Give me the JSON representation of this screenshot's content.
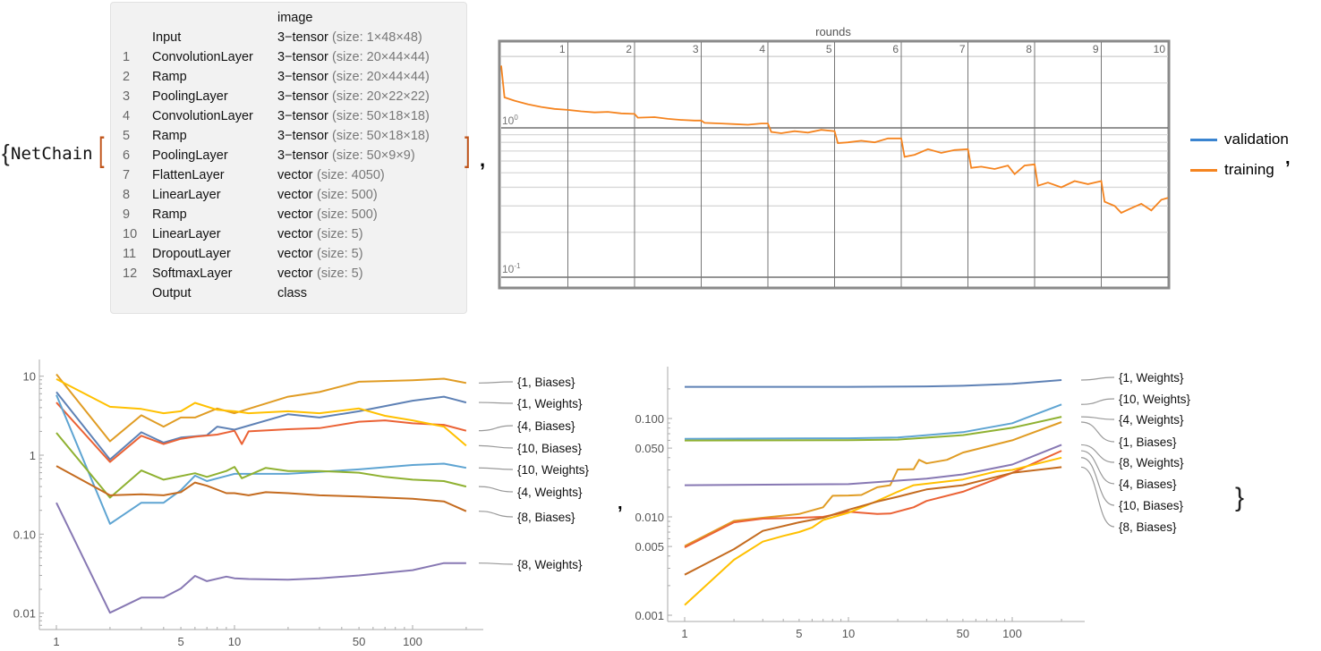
{
  "expression": {
    "open_brace": "{",
    "head": "NetChain",
    "open_bracket": "[",
    "close_bracket": "]",
    "comma": ",",
    "close_brace": "}"
  },
  "netchain": {
    "input_header": "image",
    "rows": [
      {
        "num": "",
        "name": "Input",
        "type": "3−tensor",
        "size": "(size: 1×48×48)"
      },
      {
        "num": "1",
        "name": "ConvolutionLayer",
        "type": "3−tensor",
        "size": "(size: 20×44×44)"
      },
      {
        "num": "2",
        "name": "Ramp",
        "type": "3−tensor",
        "size": "(size: 20×44×44)"
      },
      {
        "num": "3",
        "name": "PoolingLayer",
        "type": "3−tensor",
        "size": "(size: 20×22×22)"
      },
      {
        "num": "4",
        "name": "ConvolutionLayer",
        "type": "3−tensor",
        "size": "(size: 50×18×18)"
      },
      {
        "num": "5",
        "name": "Ramp",
        "type": "3−tensor",
        "size": "(size: 50×18×18)"
      },
      {
        "num": "6",
        "name": "PoolingLayer",
        "type": "3−tensor",
        "size": "(size: 50×9×9)"
      },
      {
        "num": "7",
        "name": "FlattenLayer",
        "type": "vector",
        "size": "(size: 4050)"
      },
      {
        "num": "8",
        "name": "LinearLayer",
        "type": "vector",
        "size": "(size: 500)"
      },
      {
        "num": "9",
        "name": "Ramp",
        "type": "vector",
        "size": "(size: 500)"
      },
      {
        "num": "10",
        "name": "LinearLayer",
        "type": "vector",
        "size": "(size: 5)"
      },
      {
        "num": "11",
        "name": "DropoutLayer",
        "type": "vector",
        "size": "(size: 5)"
      },
      {
        "num": "12",
        "name": "SoftmaxLayer",
        "type": "vector",
        "size": "(size: 5)"
      },
      {
        "num": "",
        "name": "Output",
        "type": "class",
        "size": ""
      }
    ]
  },
  "chart_data": [
    {
      "type": "line",
      "title": "rounds",
      "xlim": [
        0,
        10
      ],
      "x_ticks": [
        "1",
        "2",
        "3",
        "4",
        "5",
        "6",
        "7",
        "8",
        "9",
        "10"
      ],
      "y_scale": "log",
      "ylim": [
        0.085,
        3.1
      ],
      "y_tick_labels": [
        {
          "base": "10",
          "exp": "0"
        },
        {
          "base": "10",
          "exp": "-1"
        }
      ],
      "grid": true,
      "legend": "right",
      "series": [
        {
          "name": "validation",
          "color": "#3a84d0",
          "x": [],
          "y": []
        },
        {
          "name": "training",
          "color": "#f5841f",
          "x": [
            0,
            0.05,
            0.2,
            0.4,
            0.6,
            0.8,
            1,
            1.2,
            1.4,
            1.6,
            1.8,
            2,
            2.05,
            2.3,
            2.5,
            2.7,
            2.9,
            3,
            3.05,
            3.3,
            3.5,
            3.7,
            3.9,
            4,
            4.05,
            4.2,
            4.4,
            4.6,
            4.8,
            5,
            5.05,
            5.2,
            5.4,
            5.6,
            5.8,
            6,
            6.05,
            6.2,
            6.4,
            6.6,
            6.8,
            7,
            7.05,
            7.2,
            7.4,
            7.6,
            7.7,
            7.85,
            8,
            8.05,
            8.2,
            8.4,
            8.6,
            8.8,
            9,
            9.05,
            9.2,
            9.3,
            9.45,
            9.6,
            9.75,
            9.9,
            10
          ],
          "y": [
            2.61,
            1.6,
            1.52,
            1.44,
            1.38,
            1.34,
            1.32,
            1.29,
            1.27,
            1.28,
            1.25,
            1.24,
            1.17,
            1.18,
            1.15,
            1.13,
            1.12,
            1.12,
            1.08,
            1.07,
            1.06,
            1.05,
            1.07,
            1.07,
            0.94,
            0.92,
            0.95,
            0.93,
            0.97,
            0.95,
            0.79,
            0.8,
            0.82,
            0.8,
            0.85,
            0.85,
            0.64,
            0.66,
            0.72,
            0.68,
            0.71,
            0.72,
            0.54,
            0.55,
            0.53,
            0.56,
            0.49,
            0.56,
            0.57,
            0.41,
            0.43,
            0.4,
            0.44,
            0.42,
            0.44,
            0.32,
            0.3,
            0.27,
            0.29,
            0.31,
            0.28,
            0.33,
            0.34
          ]
        }
      ]
    },
    {
      "type": "line",
      "x_scale": "log",
      "y_scale": "log",
      "xlim": [
        1,
        200
      ],
      "ylim": [
        0.006,
        15
      ],
      "x_ticks": [
        "1",
        "5",
        "10",
        "50",
        "100"
      ],
      "y_ticks": [
        "10",
        "1",
        "0.10",
        "0.01"
      ],
      "legend": "right",
      "series": [
        {
          "name": "{1, Biases}",
          "color": "#e09c24",
          "x": [
            1,
            2,
            3,
            4,
            5,
            6,
            8,
            10,
            20,
            30,
            50,
            100,
            150,
            200
          ],
          "y": [
            10.6,
            1.5,
            3.2,
            2.3,
            3.0,
            3.0,
            3.9,
            3.4,
            5.5,
            6.3,
            8.5,
            8.9,
            9.3,
            8.2
          ]
        },
        {
          "name": "{1, Weights}",
          "color": "#5e81b5",
          "x": [
            1,
            2,
            3,
            4,
            5,
            7,
            8,
            10,
            20,
            30,
            50,
            100,
            150,
            200
          ],
          "y": [
            6.3,
            0.88,
            1.95,
            1.44,
            1.67,
            1.79,
            2.3,
            2.1,
            3.3,
            3.0,
            3.6,
            4.9,
            5.5,
            4.65
          ]
        },
        {
          "name": "{4, Biases}",
          "color": "#eb6235",
          "x": [
            1,
            2,
            3,
            4,
            5,
            6,
            8,
            10,
            11,
            12,
            20,
            30,
            50,
            70,
            100,
            150,
            200
          ],
          "y": [
            4.65,
            0.82,
            1.76,
            1.38,
            1.61,
            1.71,
            1.82,
            2.04,
            1.38,
            2.0,
            2.13,
            2.2,
            2.65,
            2.76,
            2.53,
            2.42,
            2.04
          ]
        },
        {
          "name": "{10, Biases}",
          "color": "#ffc000",
          "x": [
            1,
            2,
            3,
            4,
            5,
            6,
            8,
            10,
            12,
            20,
            30,
            50,
            70,
            100,
            150,
            200
          ],
          "y": [
            9.2,
            4.1,
            3.85,
            3.4,
            3.6,
            4.6,
            3.75,
            3.6,
            3.4,
            3.6,
            3.4,
            3.9,
            3.15,
            2.76,
            2.3,
            1.32
          ]
        },
        {
          "name": "{10, Weights}",
          "color": "#5ea4d2",
          "x": [
            1,
            2,
            3,
            4,
            5,
            6,
            7,
            10,
            20,
            50,
            100,
            150,
            200
          ],
          "y": [
            5.8,
            0.135,
            0.25,
            0.25,
            0.36,
            0.55,
            0.47,
            0.58,
            0.58,
            0.66,
            0.75,
            0.78,
            0.69
          ]
        },
        {
          "name": "{4, Weights}",
          "color": "#8fb131",
          "x": [
            1,
            2,
            3,
            4,
            6,
            7,
            9,
            10,
            11,
            15,
            20,
            30,
            50,
            70,
            100,
            150,
            200
          ],
          "y": [
            1.92,
            0.29,
            0.64,
            0.49,
            0.59,
            0.53,
            0.63,
            0.71,
            0.51,
            0.69,
            0.63,
            0.63,
            0.6,
            0.53,
            0.49,
            0.47,
            0.4
          ]
        },
        {
          "name": "{8, Biases}",
          "color": "#c46b1f",
          "x": [
            1,
            2,
            3,
            4,
            5,
            6,
            7,
            9,
            10,
            12,
            15,
            20,
            30,
            50,
            100,
            150,
            200
          ],
          "y": [
            0.73,
            0.31,
            0.32,
            0.31,
            0.34,
            0.45,
            0.41,
            0.33,
            0.33,
            0.31,
            0.34,
            0.33,
            0.31,
            0.3,
            0.28,
            0.26,
            0.195
          ]
        },
        {
          "name": "{8, Weights}",
          "color": "#8778b3",
          "x": [
            1,
            2,
            3,
            4,
            5,
            6,
            7,
            9,
            10,
            12,
            20,
            30,
            50,
            100,
            150,
            200
          ],
          "y": [
            0.25,
            0.0101,
            0.0157,
            0.0157,
            0.0205,
            0.0296,
            0.0254,
            0.029,
            0.0276,
            0.027,
            0.0265,
            0.0276,
            0.03,
            0.035,
            0.043,
            0.043
          ]
        }
      ]
    },
    {
      "type": "line",
      "x_scale": "log",
      "y_scale": "log",
      "xlim": [
        1,
        200
      ],
      "ylim": [
        0.0009,
        0.3
      ],
      "x_ticks": [
        "1",
        "5",
        "10",
        "50",
        "100"
      ],
      "y_ticks": [
        "0.100",
        "0.050",
        "0.010",
        "0.005",
        "0.001"
      ],
      "legend": "right",
      "series": [
        {
          "name": "{1, Weights}",
          "color": "#5e81b5",
          "x": [
            1,
            10,
            30,
            50,
            100,
            200
          ],
          "y": [
            0.21,
            0.21,
            0.212,
            0.215,
            0.225,
            0.246
          ]
        },
        {
          "name": "{10, Weights}",
          "color": "#5ea4d2",
          "x": [
            1,
            10,
            20,
            50,
            100,
            200
          ],
          "y": [
            0.0622,
            0.063,
            0.064,
            0.0726,
            0.0895,
            0.139
          ]
        },
        {
          "name": "{4, Weights}",
          "color": "#8fb131",
          "x": [
            1,
            10,
            20,
            50,
            100,
            200
          ],
          "y": [
            0.0597,
            0.0603,
            0.061,
            0.0677,
            0.0805,
            0.104
          ]
        },
        {
          "name": "{1, Biases}",
          "color": "#e09c24",
          "x": [
            1,
            2,
            3,
            5,
            7,
            8,
            10,
            12,
            15,
            18,
            20,
            25,
            27,
            30,
            40,
            50,
            100,
            200
          ],
          "y": [
            0.00505,
            0.0091,
            0.0098,
            0.0107,
            0.0125,
            0.0164,
            0.0165,
            0.0167,
            0.02,
            0.021,
            0.0303,
            0.0305,
            0.038,
            0.035,
            0.038,
            0.045,
            0.06,
            0.092
          ]
        },
        {
          "name": "{8, Weights}",
          "color": "#8778b3",
          "x": [
            1,
            10,
            30,
            50,
            100,
            200
          ],
          "y": [
            0.021,
            0.0215,
            0.0245,
            0.027,
            0.034,
            0.054
          ]
        },
        {
          "name": "{4, Biases}",
          "color": "#eb6235",
          "x": [
            1,
            2,
            3,
            5,
            7,
            10,
            15,
            18,
            25,
            30,
            50,
            100,
            200
          ],
          "y": [
            0.0049,
            0.0088,
            0.0096,
            0.0098,
            0.01,
            0.0113,
            0.0107,
            0.0108,
            0.0125,
            0.0145,
            0.018,
            0.028,
            0.047
          ]
        },
        {
          "name": "{10, Biases}",
          "color": "#ffc000",
          "x": [
            1,
            2,
            3,
            4,
            5,
            6,
            7,
            10,
            15,
            20,
            25,
            50,
            80,
            100,
            200
          ],
          "y": [
            0.00127,
            0.00366,
            0.0056,
            0.0064,
            0.007,
            0.0078,
            0.0093,
            0.011,
            0.0145,
            0.018,
            0.021,
            0.024,
            0.029,
            0.03,
            0.04
          ]
        },
        {
          "name": "{8, Biases}",
          "color": "#c46b1f",
          "x": [
            1,
            2,
            3,
            5,
            7,
            10,
            15,
            20,
            30,
            50,
            100,
            200
          ],
          "y": [
            0.00258,
            0.0047,
            0.0072,
            0.0088,
            0.0098,
            0.0118,
            0.0143,
            0.016,
            0.019,
            0.021,
            0.028,
            0.032
          ]
        }
      ]
    }
  ]
}
